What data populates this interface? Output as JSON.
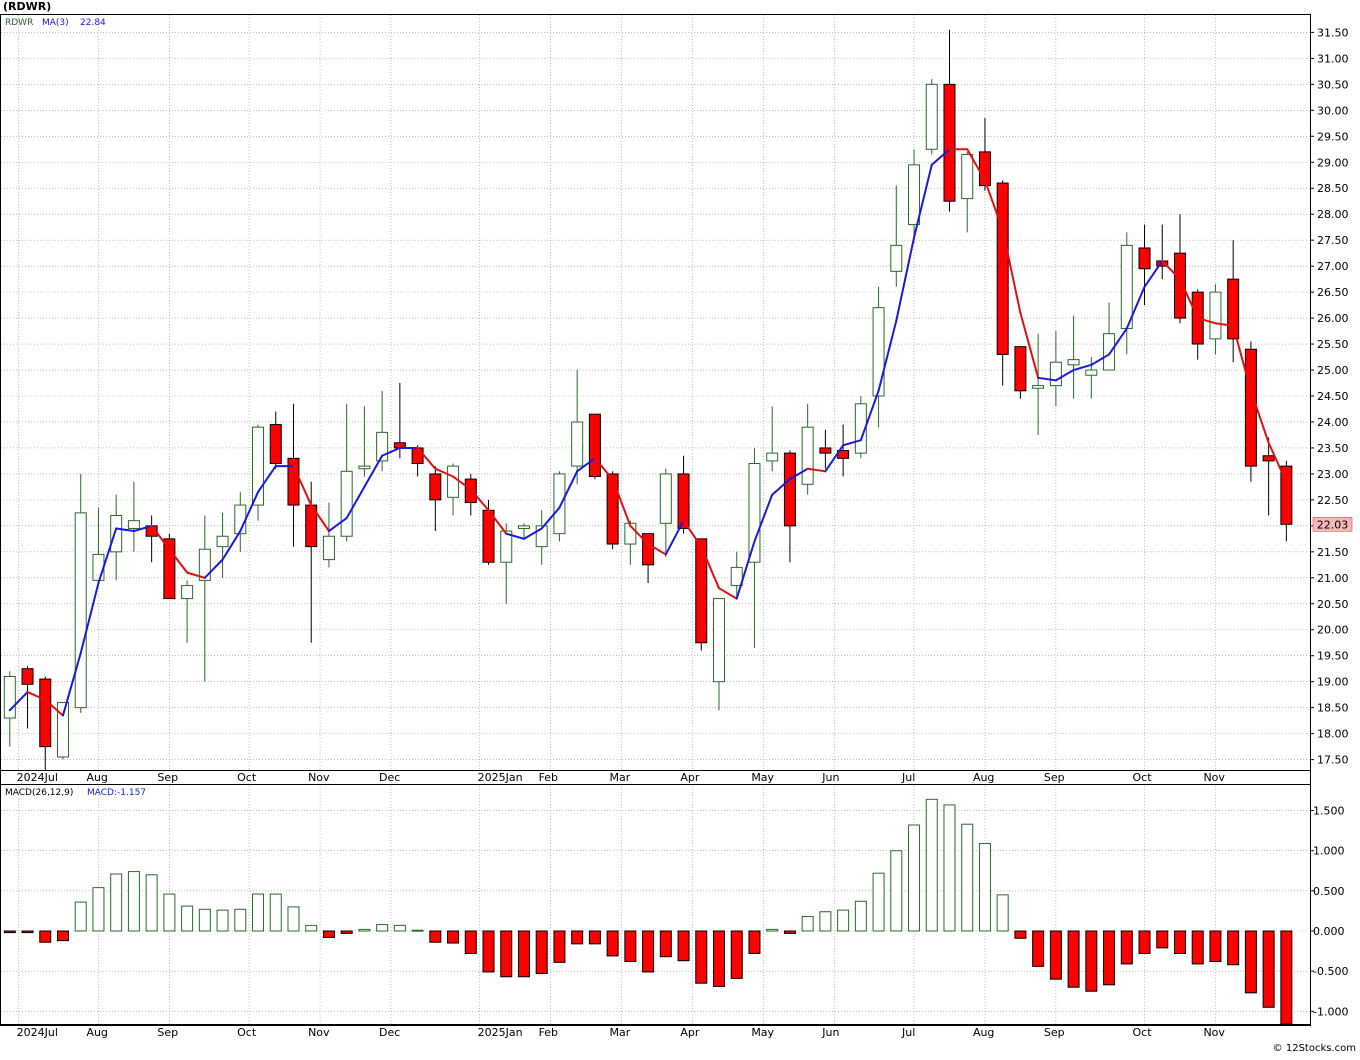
{
  "title": "(RDWR)",
  "credit": "© 12Stocks.com",
  "colors": {
    "up_candle_stroke": "#2a6a2a",
    "down_candle_fill": "#ff0000",
    "ma_up": "#1a1adb",
    "ma_down": "#e01010",
    "grid": "#9a9a9a",
    "last_price_box": "#f6b7b7"
  },
  "legend": {
    "symbol": "RDWR",
    "ma_label": "MA(3)",
    "ma_value": "22.84",
    "macd_label": "MACD(26,12,9)",
    "macd_value_label": "MACD:-1.157"
  },
  "last_price": "22.03",
  "chart_data": [
    {
      "type": "candlestick",
      "name": "price",
      "ylim": [
        17.3,
        31.9
      ],
      "y_ticks": [
        "17.50",
        "18.00",
        "18.50",
        "19.00",
        "19.50",
        "20.00",
        "20.50",
        "21.00",
        "21.50",
        "22.00",
        "22.50",
        "23.00",
        "23.50",
        "24.00",
        "24.50",
        "25.00",
        "25.50",
        "26.00",
        "26.50",
        "27.00",
        "27.50",
        "28.00",
        "28.50",
        "29.00",
        "29.50",
        "30.00",
        "30.50",
        "31.00",
        "31.50"
      ],
      "x_labels": [
        {
          "week": 0.5,
          "label": "2024Jul"
        },
        {
          "week": 5,
          "label": "Aug"
        },
        {
          "week": 9,
          "label": "Sep"
        },
        {
          "week": 13.5,
          "label": "Oct"
        },
        {
          "week": 17.5,
          "label": "Nov"
        },
        {
          "week": 21.5,
          "label": "Dec"
        },
        {
          "week": 26.5,
          "label": "2025Jan"
        },
        {
          "week": 30.5,
          "label": "Feb"
        },
        {
          "week": 34.5,
          "label": "Mar"
        },
        {
          "week": 38.5,
          "label": "Apr"
        },
        {
          "week": 42.5,
          "label": "May"
        },
        {
          "week": 46.5,
          "label": "Jun"
        },
        {
          "week": 51,
          "label": "Jul"
        },
        {
          "week": 55,
          "label": "Aug"
        },
        {
          "week": 59,
          "label": "Sep"
        },
        {
          "week": 64,
          "label": "Oct"
        },
        {
          "week": 68,
          "label": "Nov"
        }
      ],
      "candles": [
        {
          "o": 18.3,
          "h": 19.2,
          "l": 17.75,
          "c": 19.1
        },
        {
          "o": 19.25,
          "h": 19.3,
          "l": 18.1,
          "c": 18.95
        },
        {
          "o": 19.05,
          "h": 19.1,
          "l": 17.3,
          "c": 17.75
        },
        {
          "o": 17.55,
          "h": 18.6,
          "l": 17.5,
          "c": 18.6
        },
        {
          "o": 18.5,
          "h": 23.0,
          "l": 18.4,
          "c": 22.25
        },
        {
          "o": 20.95,
          "h": 22.35,
          "l": 20.9,
          "c": 21.45
        },
        {
          "o": 21.5,
          "h": 22.6,
          "l": 20.95,
          "c": 22.2
        },
        {
          "o": 21.95,
          "h": 22.85,
          "l": 21.5,
          "c": 22.1
        },
        {
          "o": 22.0,
          "h": 22.2,
          "l": 21.3,
          "c": 21.8
        },
        {
          "o": 21.75,
          "h": 21.85,
          "l": 20.6,
          "c": 20.6
        },
        {
          "o": 20.6,
          "h": 20.95,
          "l": 19.75,
          "c": 20.85
        },
        {
          "o": 20.95,
          "h": 22.2,
          "l": 19.0,
          "c": 21.55
        },
        {
          "o": 21.6,
          "h": 22.25,
          "l": 21.0,
          "c": 21.8
        },
        {
          "o": 21.85,
          "h": 22.65,
          "l": 21.5,
          "c": 22.4
        },
        {
          "o": 22.4,
          "h": 23.95,
          "l": 22.1,
          "c": 23.9
        },
        {
          "o": 23.95,
          "h": 24.2,
          "l": 23.1,
          "c": 23.2
        },
        {
          "o": 23.3,
          "h": 24.35,
          "l": 21.6,
          "c": 22.4
        },
        {
          "o": 22.4,
          "h": 22.85,
          "l": 19.75,
          "c": 21.6
        },
        {
          "o": 21.35,
          "h": 22.45,
          "l": 21.2,
          "c": 21.8
        },
        {
          "o": 21.8,
          "h": 24.35,
          "l": 21.7,
          "c": 23.05
        },
        {
          "o": 23.1,
          "h": 24.3,
          "l": 22.95,
          "c": 23.15
        },
        {
          "o": 23.25,
          "h": 24.6,
          "l": 23.05,
          "c": 23.8
        },
        {
          "o": 23.6,
          "h": 24.75,
          "l": 23.3,
          "c": 23.5
        },
        {
          "o": 23.5,
          "h": 23.55,
          "l": 22.95,
          "c": 23.2
        },
        {
          "o": 23.0,
          "h": 23.15,
          "l": 21.9,
          "c": 22.5
        },
        {
          "o": 22.55,
          "h": 23.2,
          "l": 22.2,
          "c": 23.15
        },
        {
          "o": 22.9,
          "h": 23.0,
          "l": 22.2,
          "c": 22.45
        },
        {
          "o": 22.3,
          "h": 22.5,
          "l": 21.25,
          "c": 21.3
        },
        {
          "o": 21.3,
          "h": 22.05,
          "l": 20.5,
          "c": 21.9
        },
        {
          "o": 21.95,
          "h": 22.05,
          "l": 21.75,
          "c": 22.0
        },
        {
          "o": 21.6,
          "h": 22.3,
          "l": 21.25,
          "c": 22.0
        },
        {
          "o": 21.85,
          "h": 23.05,
          "l": 21.7,
          "c": 23.0
        },
        {
          "o": 23.15,
          "h": 25.0,
          "l": 22.8,
          "c": 24.0
        },
        {
          "o": 24.15,
          "h": 24.15,
          "l": 22.9,
          "c": 22.95
        },
        {
          "o": 23.0,
          "h": 23.05,
          "l": 21.55,
          "c": 21.65
        },
        {
          "o": 21.65,
          "h": 22.1,
          "l": 21.25,
          "c": 22.05
        },
        {
          "o": 21.85,
          "h": 21.85,
          "l": 20.9,
          "c": 21.25
        },
        {
          "o": 22.05,
          "h": 23.1,
          "l": 21.4,
          "c": 23.0
        },
        {
          "o": 23.0,
          "h": 23.35,
          "l": 21.85,
          "c": 21.95
        },
        {
          "o": 21.75,
          "h": 21.75,
          "l": 19.6,
          "c": 19.75
        },
        {
          "o": 19.0,
          "h": 20.6,
          "l": 18.45,
          "c": 20.6
        },
        {
          "o": 20.85,
          "h": 21.5,
          "l": 20.6,
          "c": 21.2
        },
        {
          "o": 21.3,
          "h": 23.5,
          "l": 19.65,
          "c": 23.2
        },
        {
          "o": 23.25,
          "h": 24.3,
          "l": 23.05,
          "c": 23.4
        },
        {
          "o": 23.4,
          "h": 23.45,
          "l": 21.3,
          "c": 22.0
        },
        {
          "o": 22.8,
          "h": 24.35,
          "l": 22.6,
          "c": 23.9
        },
        {
          "o": 23.5,
          "h": 23.85,
          "l": 23.1,
          "c": 23.4
        },
        {
          "o": 23.45,
          "h": 23.95,
          "l": 22.95,
          "c": 23.3
        },
        {
          "o": 23.4,
          "h": 24.5,
          "l": 23.3,
          "c": 24.35
        },
        {
          "o": 24.5,
          "h": 26.6,
          "l": 23.9,
          "c": 26.2
        },
        {
          "o": 26.9,
          "h": 28.55,
          "l": 26.6,
          "c": 27.4
        },
        {
          "o": 27.8,
          "h": 29.25,
          "l": 27.45,
          "c": 28.95
        },
        {
          "o": 29.25,
          "h": 30.6,
          "l": 29.15,
          "c": 30.5
        },
        {
          "o": 30.5,
          "h": 31.55,
          "l": 28.05,
          "c": 28.25
        },
        {
          "o": 28.3,
          "h": 29.2,
          "l": 27.65,
          "c": 29.15
        },
        {
          "o": 29.2,
          "h": 29.85,
          "l": 28.45,
          "c": 28.55
        },
        {
          "o": 28.6,
          "h": 28.65,
          "l": 24.7,
          "c": 25.3
        },
        {
          "o": 25.45,
          "h": 25.45,
          "l": 24.45,
          "c": 24.6
        },
        {
          "o": 24.65,
          "h": 25.7,
          "l": 23.75,
          "c": 24.7
        },
        {
          "o": 24.7,
          "h": 25.75,
          "l": 24.3,
          "c": 25.15
        },
        {
          "o": 25.1,
          "h": 26.05,
          "l": 24.45,
          "c": 25.2
        },
        {
          "o": 24.9,
          "h": 25.25,
          "l": 24.45,
          "c": 25.0
        },
        {
          "o": 25.0,
          "h": 26.3,
          "l": 25.0,
          "c": 25.7
        },
        {
          "o": 25.8,
          "h": 27.65,
          "l": 25.3,
          "c": 27.4
        },
        {
          "o": 27.35,
          "h": 27.8,
          "l": 26.25,
          "c": 26.95
        },
        {
          "o": 27.1,
          "h": 27.8,
          "l": 26.75,
          "c": 27.0
        },
        {
          "o": 27.25,
          "h": 28.0,
          "l": 25.9,
          "c": 26.0
        },
        {
          "o": 26.5,
          "h": 26.55,
          "l": 25.2,
          "c": 25.5
        },
        {
          "o": 25.6,
          "h": 26.65,
          "l": 25.3,
          "c": 26.5
        },
        {
          "o": 26.75,
          "h": 27.5,
          "l": 25.15,
          "c": 25.6
        },
        {
          "o": 25.4,
          "h": 25.55,
          "l": 22.85,
          "c": 23.15
        },
        {
          "o": 23.35,
          "h": 23.7,
          "l": 22.2,
          "c": 23.25
        },
        {
          "o": 23.15,
          "h": 23.25,
          "l": 21.7,
          "c": 22.03
        }
      ],
      "ma3": [
        18.45,
        18.8,
        18.65,
        18.35,
        19.55,
        20.9,
        21.95,
        21.9,
        22.0,
        21.55,
        21.1,
        21.0,
        21.35,
        21.9,
        22.65,
        23.15,
        23.15,
        22.4,
        21.9,
        22.15,
        22.75,
        23.35,
        23.5,
        23.5,
        23.1,
        22.95,
        22.7,
        22.3,
        21.85,
        21.75,
        21.95,
        22.35,
        23.05,
        23.3,
        22.9,
        22.0,
        21.65,
        21.45,
        22.1,
        21.6,
        20.8,
        20.6,
        21.7,
        22.6,
        22.9,
        23.1,
        23.05,
        23.55,
        23.65,
        24.6,
        25.95,
        27.55,
        28.95,
        29.25,
        29.25,
        28.65,
        27.7,
        26.1,
        24.85,
        24.8,
        25.0,
        25.1,
        25.3,
        25.8,
        26.6,
        27.1,
        26.75,
        26.0,
        25.9,
        25.85,
        24.6,
        23.6,
        22.84
      ],
      "ma3_up": [
        true,
        true,
        false,
        false,
        true,
        true,
        true,
        true,
        true,
        false,
        false,
        false,
        true,
        true,
        true,
        true,
        true,
        false,
        false,
        true,
        true,
        true,
        true,
        true,
        false,
        false,
        false,
        false,
        false,
        true,
        true,
        true,
        true,
        true,
        false,
        false,
        false,
        false,
        true,
        false,
        false,
        false,
        true,
        true,
        true,
        true,
        false,
        true,
        true,
        true,
        true,
        true,
        true,
        true,
        false,
        false,
        false,
        false,
        false,
        true,
        true,
        true,
        true,
        true,
        true,
        true,
        false,
        false,
        false,
        false,
        false,
        false,
        false
      ]
    },
    {
      "type": "bar",
      "name": "macd-histogram",
      "ylim": [
        -1.18,
        1.65
      ],
      "y_ticks": [
        "-1.000",
        "-0.500",
        "0.000",
        "0.500",
        "1.000",
        "1.500"
      ],
      "values": [
        -0.02,
        -0.02,
        -0.14,
        -0.12,
        0.36,
        0.54,
        0.71,
        0.74,
        0.7,
        0.46,
        0.31,
        0.27,
        0.26,
        0.27,
        0.46,
        0.46,
        0.3,
        0.07,
        -0.08,
        -0.03,
        0.02,
        0.08,
        0.07,
        0.01,
        -0.14,
        -0.15,
        -0.28,
        -0.51,
        -0.57,
        -0.57,
        -0.53,
        -0.39,
        -0.16,
        -0.16,
        -0.31,
        -0.38,
        -0.51,
        -0.32,
        -0.37,
        -0.65,
        -0.69,
        -0.59,
        -0.28,
        0.02,
        -0.03,
        0.18,
        0.24,
        0.26,
        0.37,
        0.72,
        1.0,
        1.32,
        1.64,
        1.57,
        1.33,
        1.09,
        0.45,
        -0.09,
        -0.44,
        -0.6,
        -0.7,
        -0.75,
        -0.67,
        -0.41,
        -0.28,
        -0.21,
        -0.28,
        -0.41,
        -0.38,
        -0.42,
        -0.77,
        -0.95,
        -1.16
      ]
    }
  ]
}
